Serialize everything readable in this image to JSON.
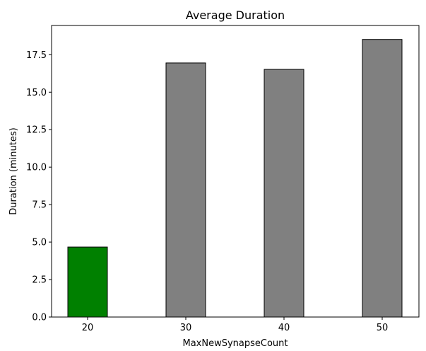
{
  "chart_data": {
    "type": "bar",
    "title": "Average Duration",
    "xlabel": "MaxNewSynapseCount",
    "ylabel": "Duration (minutes)",
    "categories": [
      "20",
      "30",
      "40",
      "50"
    ],
    "values": [
      4.67,
      16.95,
      16.52,
      18.52
    ],
    "bar_colors": [
      "#008000",
      "#808080",
      "#808080",
      "#808080"
    ],
    "edge_color": "#000000",
    "ylim": [
      0,
      19.45
    ],
    "yticks": [
      "0.0",
      "2.5",
      "5.0",
      "7.5",
      "10.0",
      "12.5",
      "15.0",
      "17.5"
    ],
    "grid": false,
    "legend": "none"
  }
}
